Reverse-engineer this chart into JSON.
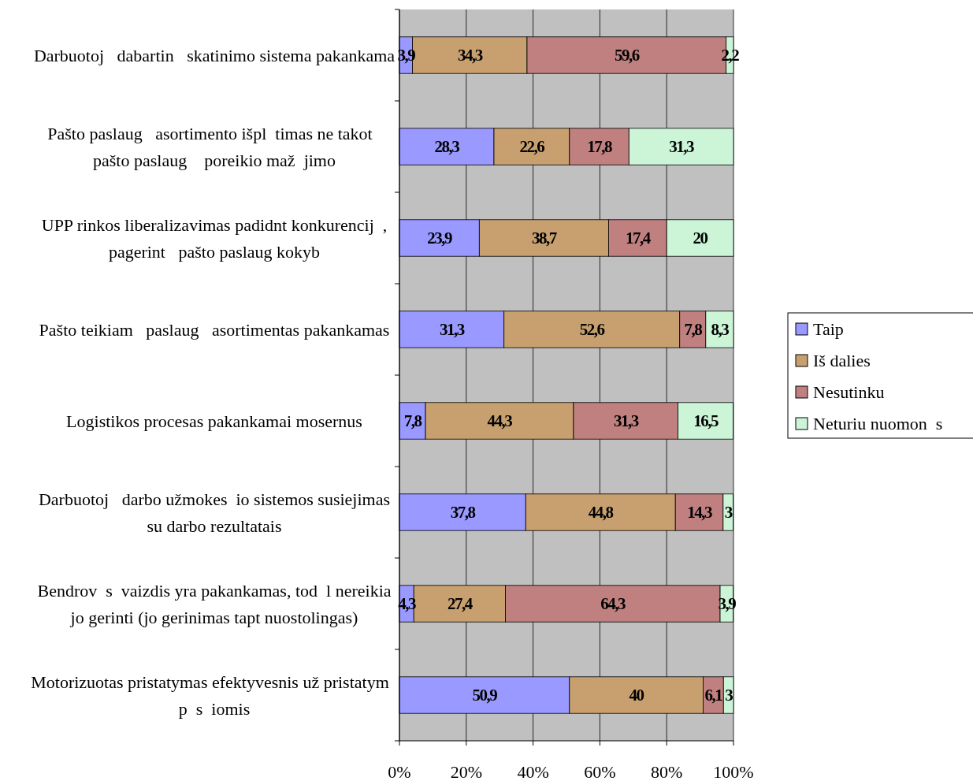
{
  "chart_data": {
    "type": "bar",
    "orientation": "horizontal",
    "stacked": true,
    "categories": [
      "Darbuotoj   dabartin   skatinimo sistema pakankama",
      "Pašto paslaug   asortimento išpl  timas ne takot   pašto paslaug    poreikio maž  jimo",
      "UPP rinkos liberalizavimas padidnt konkurencij  , pagerint   pašto paslaug kokyb",
      "Pašto teikiam   paslaug   asortimentas pakankamas",
      "Logistikos procesas pakankamai mosernus",
      "Darbuotoj   darbo užmokes  io sistemos susiejimas su darbo rezultatais",
      "Bendrov  s  vaizdis yra pakankamas, tod  l nereikia jo gerinti (jo gerinimas tapt nuostolingas)",
      "Motorizuotas pristatymas efektyvesnis už pristatym   p  s  iomis"
    ],
    "series": [
      {
        "name": "Taip",
        "color": "#9999ff",
        "values": [
          3.9,
          28.3,
          23.9,
          31.3,
          7.8,
          37.8,
          4.3,
          50.9
        ],
        "value_labels": [
          "3,9",
          "28,3",
          "23,9",
          "31,3",
          "7,8",
          "37,8",
          "4,3",
          "50,9"
        ]
      },
      {
        "name": "Iš dalies",
        "color": "#c8a070",
        "values": [
          34.3,
          22.6,
          38.7,
          52.6,
          44.3,
          44.8,
          27.4,
          40
        ],
        "value_labels": [
          "34,3",
          "22,6",
          "38,7",
          "52,6",
          "44,3",
          "44,8",
          "27,4",
          "40"
        ]
      },
      {
        "name": "Nesutinku",
        "color": "#c08080",
        "values": [
          59.6,
          17.8,
          17.4,
          7.8,
          31.3,
          14.3,
          64.3,
          6.1
        ],
        "value_labels": [
          "59,6",
          "17,8",
          "17,4",
          "7,8",
          "31,3",
          "14,3",
          "64,3",
          "6,1"
        ]
      },
      {
        "name": "Neturiu nuomon  s",
        "color": "#ccf5d8",
        "values": [
          2.2,
          31.3,
          20,
          8.3,
          16.5,
          3,
          3.9,
          3
        ],
        "value_labels": [
          "2,2",
          "31,3",
          "20",
          "8,3",
          "16,5",
          "3",
          "3,9",
          "3"
        ]
      }
    ],
    "xlim": [
      0,
      100
    ],
    "xticks": [
      {
        "value": 0,
        "label": "0%"
      },
      {
        "value": 20,
        "label": "20%"
      },
      {
        "value": 40,
        "label": "40%"
      },
      {
        "value": 60,
        "label": "60%"
      },
      {
        "value": 80,
        "label": "80%"
      },
      {
        "value": 100,
        "label": "100%"
      }
    ],
    "grid": "x",
    "legend": "right"
  }
}
